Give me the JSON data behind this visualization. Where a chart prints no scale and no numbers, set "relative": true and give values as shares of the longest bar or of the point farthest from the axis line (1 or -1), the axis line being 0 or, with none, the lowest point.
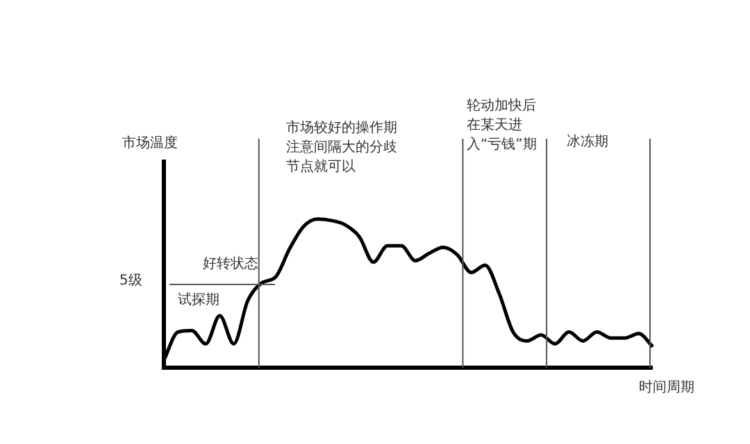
{
  "chart_data": {
    "type": "line",
    "relative": true,
    "ylabel": "市场温度",
    "xlabel": "时间周期",
    "categories": [
      null,
      null,
      null,
      null,
      null,
      null,
      null,
      null,
      null,
      null,
      null,
      null,
      null,
      null,
      null,
      null,
      null,
      null,
      null,
      null,
      null,
      null,
      null,
      null,
      null,
      null,
      null,
      null,
      null,
      null,
      null,
      null,
      null,
      null,
      null,
      null
    ],
    "series": [
      {
        "color": "#000000",
        "values": [
          0.05,
          0.24,
          0.25,
          0.16,
          0.35,
          0.16,
          0.45,
          0.57,
          0.61,
          0.8,
          0.95,
          1.0,
          0.99,
          0.96,
          0.88,
          0.71,
          0.82,
          0.82,
          0.72,
          0.77,
          0.81,
          0.76,
          0.64,
          0.69,
          0.5,
          0.24,
          0.18,
          0.22,
          0.16,
          0.24,
          0.18,
          0.24,
          0.2,
          0.2,
          0.23,
          0.14
        ]
      }
    ],
    "ref_lines": [
      {
        "axis": "y",
        "value": 0.56,
        "label": "5级",
        "color": "#555555"
      }
    ],
    "annotations": [
      "试探期",
      "好转状态",
      "市场较好的操作期注意间隔大的分歧节点就可以",
      "轮动加快后在某天进入“亏钱”期",
      "冰冻期"
    ],
    "legend": false,
    "marker": "none",
    "line_style": "solid"
  }
}
